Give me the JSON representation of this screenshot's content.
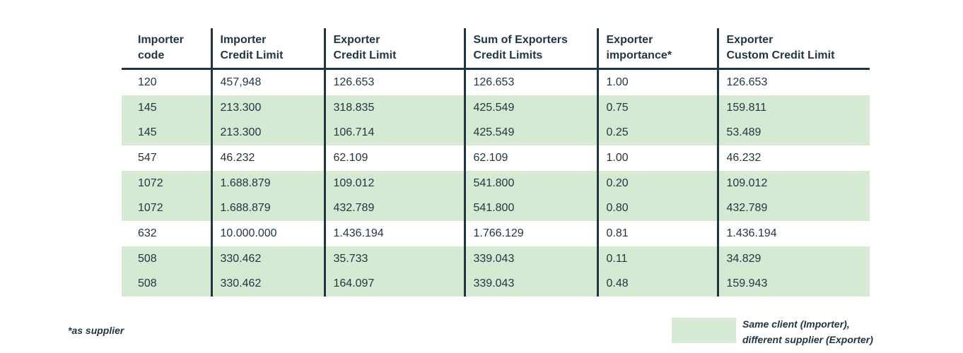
{
  "colors": {
    "text": "#1f3542",
    "shaded_row": "#d4ead3",
    "grid_line": "#1f3542"
  },
  "table": {
    "headers": [
      "Importer\ncode",
      "Importer\nCredit Limit",
      "Exporter\n Credit Limit",
      "Sum of Exporters\nCredit Limits",
      "Exporter\nimportance*",
      "Exporter\nCustom Credit Limit"
    ],
    "rows": [
      {
        "shaded": false,
        "cells": [
          "120",
          "457,948",
          "126.653",
          "126.653",
          "1.00",
          "126.653"
        ]
      },
      {
        "shaded": true,
        "cells": [
          "145",
          "213.300",
          "318.835",
          "425.549",
          "0.75",
          "159.811"
        ]
      },
      {
        "shaded": true,
        "cells": [
          "145",
          "213.300",
          "106.714",
          "425.549",
          "0.25",
          "53.489"
        ]
      },
      {
        "shaded": false,
        "cells": [
          "547",
          "46.232",
          "62.109",
          "62.109",
          "1.00",
          "46.232"
        ]
      },
      {
        "shaded": true,
        "cells": [
          "1072",
          "1.688.879",
          "109.012",
          "541.800",
          "0.20",
          "109.012"
        ]
      },
      {
        "shaded": true,
        "cells": [
          "1072",
          "1.688.879",
          "432.789",
          "541.800",
          "0.80",
          "432.789"
        ]
      },
      {
        "shaded": false,
        "cells": [
          "632",
          "10.000.000",
          "1.436.194",
          "1.766.129",
          "0.81",
          "1.436.194"
        ]
      },
      {
        "shaded": true,
        "cells": [
          "508",
          "330.462",
          "35.733",
          "339.043",
          "0.11",
          "34.829"
        ]
      },
      {
        "shaded": true,
        "cells": [
          "508",
          "330.462",
          "164.097",
          "339.043",
          "0.48",
          "159.943"
        ]
      }
    ]
  },
  "footnote": "*as supplier",
  "legend": {
    "label": "Same client (Importer),\ndifferent supplier (Exporter)"
  }
}
